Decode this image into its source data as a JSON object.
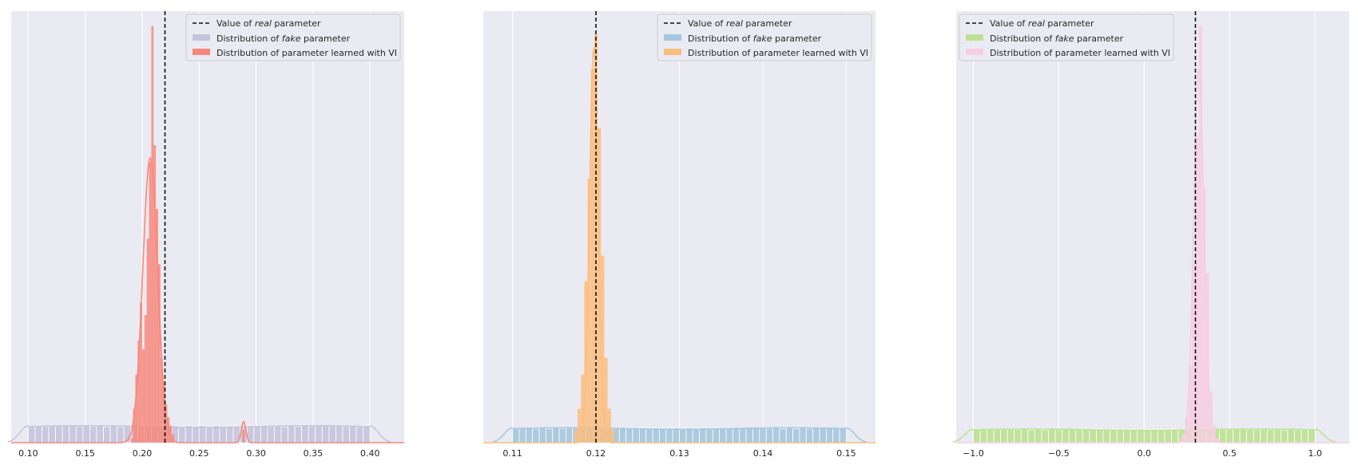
{
  "chart_data": [
    {
      "type": "histogram",
      "xlim": [
        0.085,
        0.43
      ],
      "xticks": [
        0.1,
        0.15,
        0.2,
        0.25,
        0.3,
        0.35,
        0.4
      ],
      "xtick_labels": [
        "0.10",
        "0.15",
        "0.20",
        "0.25",
        "0.30",
        "0.35",
        "0.40"
      ],
      "y_axis_labels_shown": false,
      "grid": "vertical",
      "legend_position": "upper-right",
      "real_value": 0.22,
      "legend": {
        "real_prefix": "Value of ",
        "real_italic": "real",
        "real_suffix": " parameter",
        "fake_prefix": "Distribution of ",
        "fake_italic": "fake",
        "fake_suffix": " parameter",
        "learned": "Distribution of parameter learned with VI"
      },
      "fake": {
        "color": "#c6c3dd",
        "edge": "#ffffff",
        "range": [
          0.1,
          0.4
        ],
        "bins": 50,
        "relative_height": 0.04,
        "kde_relative_height": 0.04
      },
      "learned": {
        "color": "#f8877b",
        "bins": [
          {
            "x": 0.19,
            "h": 0.01
          },
          {
            "x": 0.192,
            "h": 0.08
          },
          {
            "x": 0.194,
            "h": 0.16
          },
          {
            "x": 0.196,
            "h": 0.24
          },
          {
            "x": 0.198,
            "h": 0.33
          },
          {
            "x": 0.2,
            "h": 0.22
          },
          {
            "x": 0.202,
            "h": 0.3
          },
          {
            "x": 0.204,
            "h": 0.48
          },
          {
            "x": 0.206,
            "h": 0.66
          },
          {
            "x": 0.208,
            "h": 0.98
          },
          {
            "x": 0.21,
            "h": 0.7
          },
          {
            "x": 0.212,
            "h": 0.55
          },
          {
            "x": 0.214,
            "h": 0.42
          },
          {
            "x": 0.216,
            "h": 0.2
          },
          {
            "x": 0.218,
            "h": 0.14
          },
          {
            "x": 0.22,
            "h": 0.09
          },
          {
            "x": 0.222,
            "h": 0.06
          },
          {
            "x": 0.224,
            "h": 0.04
          },
          {
            "x": 0.226,
            "h": 0.02
          },
          {
            "x": 0.288,
            "h": 0.03
          }
        ],
        "bin_width": 0.002,
        "kde_center": 0.207,
        "kde_sigma": 0.0065,
        "kde_height": 0.67,
        "kde_bump_center": 0.289,
        "kde_bump_sigma": 0.002,
        "kde_bump_height": 0.05
      }
    },
    {
      "type": "histogram",
      "xlim": [
        0.1065,
        0.1535
      ],
      "xticks": [
        0.11,
        0.12,
        0.13,
        0.14,
        0.15
      ],
      "xtick_labels": [
        "0.11",
        "0.12",
        "0.13",
        "0.14",
        "0.15"
      ],
      "y_axis_labels_shown": false,
      "grid": "vertical",
      "legend_position": "upper-right",
      "real_value": 0.12,
      "legend": {
        "real_prefix": "Value of ",
        "real_italic": "real",
        "real_suffix": " parameter",
        "fake_prefix": "Distribution of ",
        "fake_italic": "fake",
        "fake_suffix": " parameter",
        "learned": "Distribution of parameter learned with VI"
      },
      "fake": {
        "color": "#a6c6de",
        "edge": "#ffffff",
        "range": [
          0.11,
          0.15
        ],
        "bins": 50,
        "relative_height": 0.035,
        "kde_relative_height": 0.035
      },
      "learned": {
        "color": "#fbbd7e",
        "bins": [
          {
            "x": 0.1174,
            "h": 0.03
          },
          {
            "x": 0.1178,
            "h": 0.08
          },
          {
            "x": 0.1182,
            "h": 0.16
          },
          {
            "x": 0.1186,
            "h": 0.38
          },
          {
            "x": 0.119,
            "h": 0.62
          },
          {
            "x": 0.1194,
            "h": 0.88
          },
          {
            "x": 0.1198,
            "h": 0.96
          },
          {
            "x": 0.1202,
            "h": 0.74
          },
          {
            "x": 0.1206,
            "h": 0.44
          },
          {
            "x": 0.121,
            "h": 0.2
          },
          {
            "x": 0.1214,
            "h": 0.08
          },
          {
            "x": 0.1218,
            "h": 0.03
          }
        ],
        "bin_width": 0.0004,
        "kde_center": 0.11975,
        "kde_sigma": 0.00052,
        "kde_height": 0.93,
        "kde_bump_center": 0.1198,
        "kde_bump_sigma": 0.0001,
        "kde_bump_height": 0.0
      }
    },
    {
      "type": "histogram",
      "xlim": [
        -1.1,
        1.2
      ],
      "xticks": [
        -1.0,
        -0.5,
        0.0,
        0.5,
        1.0
      ],
      "xtick_labels": [
        "−1.0",
        "−0.5",
        "0.0",
        "0.5",
        "1.0"
      ],
      "y_axis_labels_shown": false,
      "grid": "vertical",
      "legend_position": "upper-left",
      "real_value": 0.3,
      "legend": {
        "real_prefix": "Value of ",
        "real_italic": "real",
        "real_suffix": " parameter",
        "fake_prefix": "Distribution of ",
        "fake_italic": "fake",
        "fake_suffix": " parameter",
        "learned": "Distribution of parameter learned with VI"
      },
      "fake": {
        "color": "#bde193",
        "edge": "#ffffff",
        "range": [
          -1.0,
          1.0
        ],
        "bins": 50,
        "relative_height": 0.032,
        "kde_relative_height": 0.032
      },
      "learned": {
        "color": "#f7cee0",
        "bins": [
          {
            "x": 0.22,
            "h": 0.02
          },
          {
            "x": 0.24,
            "h": 0.06
          },
          {
            "x": 0.26,
            "h": 0.18
          },
          {
            "x": 0.28,
            "h": 0.42
          },
          {
            "x": 0.3,
            "h": 0.72
          },
          {
            "x": 0.32,
            "h": 0.98
          },
          {
            "x": 0.34,
            "h": 0.6
          },
          {
            "x": 0.36,
            "h": 0.4
          },
          {
            "x": 0.38,
            "h": 0.12
          },
          {
            "x": 0.4,
            "h": 0.04
          },
          {
            "x": 0.42,
            "h": 0.01
          }
        ],
        "bin_width": 0.02,
        "kde_center": 0.32,
        "kde_sigma": 0.03,
        "kde_height": 0.88,
        "kde_bump_center": 0.32,
        "kde_bump_sigma": 0.01,
        "kde_bump_height": 0.0
      }
    }
  ]
}
